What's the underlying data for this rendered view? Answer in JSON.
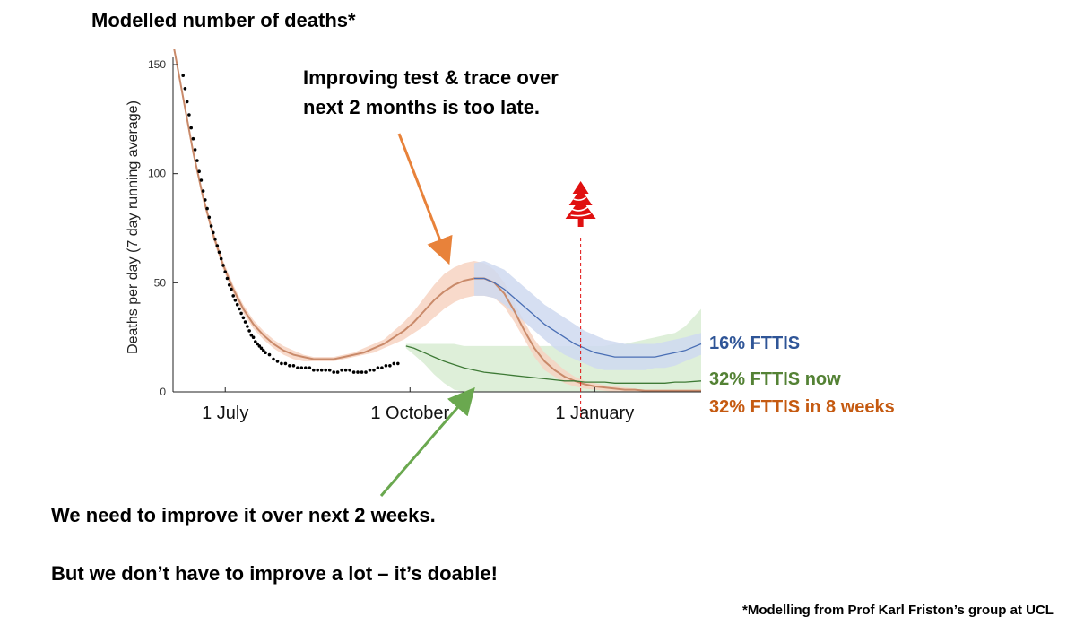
{
  "heading": "Modelled number of deaths*",
  "annotation_top": [
    "Improving test & trace over",
    "next 2 months is too late."
  ],
  "note_1": "We need to improve it over next 2 weeks.",
  "note_2": "But we don’t have to improve a lot – it’s doable!",
  "source": "*Modelling from Prof Karl Friston’s group at UCL",
  "icons": [
    "christmas-tree-icon"
  ],
  "colors": {
    "orange_line": "#c98a6a",
    "orange_band": "#f7d3c2",
    "blue_line": "#4a6fb5",
    "blue_band": "#cfd9f0",
    "green_line": "#3e7a36",
    "green_band": "#d8ecd2",
    "observed": "#000000",
    "arrow_orange": "#e8823a",
    "arrow_green": "#6aa84f",
    "tree_red": "#e01010",
    "label_blue": "#2f5597",
    "label_green": "#548235",
    "label_orange": "#c55a11"
  },
  "chart_data": {
    "type": "line",
    "title": "",
    "xlabel": "",
    "ylabel": "Deaths per day (7 day running average)",
    "ylim": [
      0,
      150
    ],
    "yticks": [
      0,
      50,
      100,
      150
    ],
    "xlim": [
      0,
      263
    ],
    "xticks": [
      {
        "value": 26,
        "label": "1 July"
      },
      {
        "value": 118,
        "label": "1 October"
      },
      {
        "value": 210,
        "label": "1 January"
      }
    ],
    "christmas_marker_x": 203,
    "observed": {
      "x": [
        5,
        6,
        7,
        8,
        9,
        10,
        11,
        12,
        13,
        14,
        15,
        16,
        17,
        18,
        19,
        20,
        21,
        22,
        23,
        24,
        25,
        26,
        27,
        28,
        29,
        30,
        31,
        32,
        33,
        34,
        35,
        36,
        37,
        38,
        39,
        40,
        41,
        42,
        43,
        44,
        45,
        46,
        48,
        50,
        52,
        54,
        56,
        58,
        60,
        62,
        64,
        66,
        68,
        70,
        72,
        74,
        76,
        78,
        80,
        82,
        84,
        86,
        88,
        90,
        92,
        94,
        96,
        98,
        100,
        102,
        104,
        106,
        108,
        110,
        112
      ],
      "y": [
        145,
        139,
        133,
        127,
        121,
        116,
        111,
        106,
        101,
        97,
        92,
        88,
        84,
        80,
        76,
        73,
        70,
        67,
        64,
        61,
        58,
        55,
        52,
        49,
        47,
        44,
        42,
        40,
        38,
        36,
        34,
        32,
        30,
        28,
        26,
        25,
        23,
        22,
        21,
        20,
        19,
        18,
        17,
        15,
        14,
        13,
        13,
        12,
        12,
        11,
        11,
        11,
        11,
        10,
        10,
        10,
        10,
        10,
        9,
        9,
        10,
        10,
        10,
        9,
        9,
        9,
        9,
        10,
        10,
        11,
        11,
        12,
        12,
        13,
        13
      ]
    },
    "series": [
      {
        "name": "32% FTTIS in 8 weeks",
        "color": "#c98a6a",
        "band_color": "#f7d3c2",
        "x": [
          0,
          5,
          10,
          15,
          20,
          25,
          30,
          35,
          40,
          45,
          50,
          55,
          60,
          65,
          70,
          75,
          80,
          85,
          90,
          95,
          100,
          105,
          110,
          115,
          120,
          125,
          130,
          135,
          140,
          145,
          150,
          155,
          160,
          165,
          170,
          175,
          180,
          185,
          190,
          195,
          200,
          205,
          210,
          215,
          220,
          225,
          230,
          235,
          240,
          245,
          250,
          255,
          263
        ],
        "y": [
          165,
          135,
          110,
          89,
          72,
          58,
          47,
          38,
          31,
          26,
          22,
          19,
          17,
          16,
          15,
          15,
          15,
          16,
          17,
          18,
          20,
          22,
          25,
          28,
          32,
          37,
          42,
          46,
          49,
          51,
          52,
          52,
          50,
          45,
          37,
          28,
          20,
          14,
          10,
          7,
          5,
          3.5,
          2.5,
          2,
          1.5,
          1,
          1,
          0.5,
          0.5,
          0.5,
          0.5,
          0.5,
          0.5
        ],
        "upper": [
          167,
          137,
          112,
          91,
          74,
          60,
          49,
          40,
          33,
          28,
          24,
          21,
          19,
          17,
          16,
          16,
          16,
          17,
          18,
          20,
          22,
          24,
          28,
          32,
          37,
          43,
          49,
          54,
          57,
          59,
          60,
          59,
          56,
          50,
          41,
          32,
          24,
          18,
          14,
          10,
          7,
          5,
          4,
          3,
          2.5,
          2,
          1.5,
          1,
          1,
          1,
          1,
          1,
          1
        ],
        "lower": [
          163,
          133,
          108,
          87,
          70,
          56,
          45,
          36,
          29,
          24,
          20,
          17,
          15,
          14,
          14,
          14,
          14,
          15,
          16,
          17,
          18,
          20,
          22,
          24,
          27,
          30,
          34,
          38,
          41,
          43,
          44,
          44,
          43,
          39,
          32,
          24,
          16,
          10,
          7,
          4,
          2.5,
          1.5,
          1,
          0.5,
          0,
          0,
          0,
          0,
          0,
          0,
          0,
          0,
          0
        ]
      },
      {
        "name": "16% FTTIS",
        "color": "#4a6fb5",
        "band_color": "#cfd9f0",
        "x": [
          150,
          155,
          160,
          165,
          170,
          175,
          180,
          185,
          190,
          195,
          200,
          205,
          210,
          215,
          220,
          225,
          230,
          235,
          240,
          245,
          250,
          255,
          263
        ],
        "y": [
          52,
          52,
          50,
          47,
          43,
          39,
          35,
          31,
          28,
          25,
          22,
          20,
          18,
          17,
          16,
          16,
          16,
          16,
          16,
          17,
          18,
          19,
          22
        ],
        "upper": [
          59,
          60,
          58,
          56,
          52,
          48,
          44,
          40,
          37,
          34,
          31,
          28,
          26,
          24,
          23,
          22,
          22,
          22,
          22,
          23,
          24,
          25,
          27
        ],
        "lower": [
          44,
          44,
          43,
          40,
          36,
          32,
          28,
          24,
          20,
          17,
          15,
          13,
          11,
          10,
          10,
          10,
          10,
          10,
          11,
          11,
          12,
          14,
          17
        ]
      },
      {
        "name": "32% FTTIS now",
        "color": "#3e7a36",
        "band_color": "#d8ecd2",
        "x": [
          116,
          120,
          125,
          130,
          135,
          140,
          145,
          150,
          155,
          160,
          165,
          170,
          175,
          180,
          185,
          190,
          195,
          200,
          205,
          210,
          215,
          220,
          225,
          230,
          235,
          240,
          245,
          250,
          255,
          263
        ],
        "y": [
          21,
          20,
          18,
          16,
          14,
          12.5,
          11,
          10,
          9,
          8.5,
          8,
          7.5,
          7,
          6.5,
          6,
          5.5,
          5,
          5,
          4.5,
          4.5,
          4.5,
          4,
          4,
          4,
          4,
          4,
          4,
          4.5,
          4.5,
          5
        ],
        "upper": [
          22,
          22,
          22,
          22,
          22,
          22,
          21,
          21,
          21,
          21,
          21,
          21,
          21,
          21,
          21,
          21,
          21,
          21,
          21,
          21,
          21,
          22,
          22,
          23,
          24,
          25,
          26,
          27,
          30,
          38
        ],
        "lower": [
          20,
          17,
          13,
          8,
          4,
          1,
          0,
          0,
          0,
          0,
          0,
          0,
          0,
          0,
          0,
          0,
          0,
          0,
          0,
          0,
          0,
          0,
          0,
          0,
          0,
          0,
          0,
          0,
          0,
          0
        ]
      }
    ],
    "legend": [
      {
        "label": "16% FTTIS",
        "color": "#2f5597"
      },
      {
        "label": "32% FTTIS now",
        "color": "#548235"
      },
      {
        "label": "32% FTTIS in 8 weeks",
        "color": "#c55a11"
      }
    ]
  }
}
